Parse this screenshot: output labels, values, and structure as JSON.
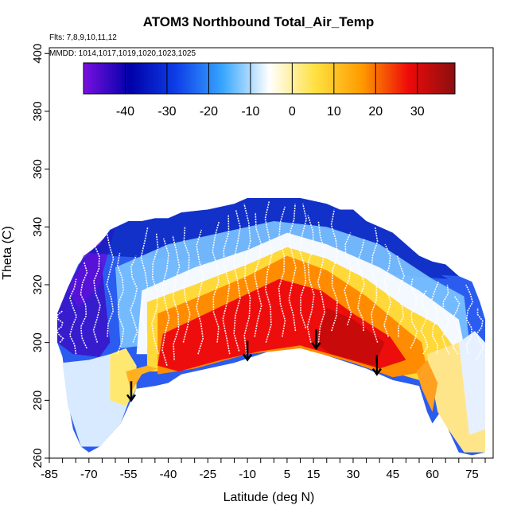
{
  "chart_data": {
    "type": "heatmap",
    "title": "ATOM3 Northbound Total_Air_Temp",
    "flights_note": "Flts: 7,8,9,10,11,12",
    "dates_note": "MMDD: 1014,1017,1019,1020,1023,1025",
    "xlabel": "Latitude (deg N)",
    "ylabel": "Theta (C)",
    "xlim": [
      -85,
      83
    ],
    "ylim": [
      260,
      402
    ],
    "x_ticks": [
      -85,
      -70,
      -55,
      -40,
      -25,
      -10,
      5,
      15,
      30,
      45,
      60,
      75
    ],
    "y_ticks": [
      260,
      280,
      300,
      320,
      340,
      360,
      380,
      400
    ],
    "colorbar": {
      "range": [
        -50,
        39
      ],
      "ticks": [
        -40,
        -30,
        -20,
        -10,
        0,
        10,
        20,
        30
      ],
      "colors": [
        "#7a10e0",
        "#0000a8",
        "#0e3ee8",
        "#38a6ff",
        "#ffffff",
        "#ffe040",
        "#ff9a00",
        "#ee0a0a",
        "#8a0f0f"
      ]
    },
    "arrows": [
      {
        "lat": -54,
        "theta": 280
      },
      {
        "lat": -10,
        "theta": 294
      },
      {
        "lat": 16,
        "theta": 298
      },
      {
        "lat": 39,
        "theta": 289
      }
    ],
    "upper_boundary": [
      [
        -82,
        310
      ],
      [
        -78,
        319
      ],
      [
        -74,
        327
      ],
      [
        -70,
        331
      ],
      [
        -66,
        334
      ],
      [
        -62,
        339
      ],
      [
        -55,
        342
      ],
      [
        -50,
        342
      ],
      [
        -45,
        343
      ],
      [
        -40,
        343
      ],
      [
        -35,
        345
      ],
      [
        -25,
        346
      ],
      [
        -15,
        348
      ],
      [
        -10,
        350
      ],
      [
        0,
        350
      ],
      [
        10,
        350
      ],
      [
        20,
        348
      ],
      [
        25,
        346
      ],
      [
        30,
        346
      ],
      [
        35,
        342
      ],
      [
        40,
        340
      ],
      [
        45,
        338
      ],
      [
        50,
        334
      ],
      [
        55,
        330
      ],
      [
        60,
        328
      ],
      [
        65,
        327
      ],
      [
        70,
        323
      ],
      [
        75,
        321
      ],
      [
        78,
        314
      ],
      [
        80,
        308
      ]
    ],
    "warm_lower_boundary": [
      [
        -54,
        282
      ],
      [
        -52,
        291
      ],
      [
        -40,
        287
      ],
      [
        -35,
        288
      ],
      [
        -30,
        290
      ],
      [
        -25,
        292
      ],
      [
        -15,
        294
      ],
      [
        -10,
        295
      ],
      [
        -5,
        296
      ],
      [
        5,
        298
      ],
      [
        8,
        300
      ],
      [
        12,
        299
      ],
      [
        15,
        298
      ],
      [
        20,
        297
      ],
      [
        25,
        296
      ],
      [
        30,
        294
      ],
      [
        35,
        292
      ],
      [
        40,
        290
      ],
      [
        45,
        288
      ],
      [
        50,
        286
      ],
      [
        55,
        285
      ],
      [
        60,
        285
      ],
      [
        65,
        286
      ],
      [
        70,
        290
      ],
      [
        75,
        290
      ]
    ],
    "lower_boundary": [
      [
        -82,
        300
      ],
      [
        -80,
        295
      ],
      [
        -78,
        280
      ],
      [
        -76,
        270
      ],
      [
        -73,
        264
      ],
      [
        -70,
        262
      ],
      [
        -66,
        264
      ],
      [
        -62,
        268
      ],
      [
        -58,
        272
      ],
      [
        -55,
        278
      ],
      [
        -52,
        284
      ],
      [
        -45,
        285
      ],
      [
        -40,
        286
      ],
      [
        -35,
        289
      ],
      [
        -25,
        291
      ],
      [
        -15,
        293
      ],
      [
        -5,
        296
      ],
      [
        5,
        299
      ],
      [
        15,
        297
      ],
      [
        25,
        294
      ],
      [
        35,
        291
      ],
      [
        45,
        287
      ],
      [
        50,
        286
      ],
      [
        55,
        285
      ],
      [
        58,
        276
      ],
      [
        60,
        272
      ],
      [
        63,
        276
      ],
      [
        66,
        270
      ],
      [
        70,
        262
      ],
      [
        75,
        261
      ],
      [
        80,
        262
      ]
    ]
  }
}
